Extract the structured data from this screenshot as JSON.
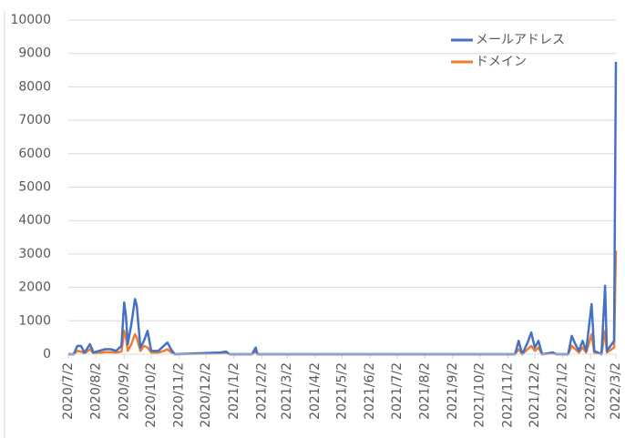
{
  "chart_data": {
    "type": "line",
    "x": [
      "2020/7/2",
      "2020/7/8",
      "2020/7/12",
      "2020/7/16",
      "2020/7/20",
      "2020/7/26",
      "2020/7/30",
      "2020/8/5",
      "2020/8/12",
      "2020/8/18",
      "2020/8/24",
      "2020/8/30",
      "2020/9/2",
      "2020/9/4",
      "2020/9/6",
      "2020/9/10",
      "2020/9/14",
      "2020/9/16",
      "2020/9/20",
      "2020/9/24",
      "2020/9/28",
      "2020/10/2",
      "2020/10/10",
      "2020/10/16",
      "2020/10/20",
      "2020/10/24",
      "2020/10/28",
      "2020/12/18",
      "2020/12/24",
      "2020/12/28",
      "2021/1/22",
      "2021/1/26",
      "2021/1/28",
      "2021/11/10",
      "2021/11/14",
      "2021/11/18",
      "2021/11/24",
      "2021/11/28",
      "2021/12/2",
      "2021/12/6",
      "2021/12/10",
      "2021/12/22",
      "2021/12/26",
      "2022/1/8",
      "2022/1/12",
      "2022/1/16",
      "2022/1/20",
      "2022/1/24",
      "2022/1/28",
      "2022/2/3",
      "2022/2/6",
      "2022/2/14",
      "2022/2/18",
      "2022/2/20",
      "2022/2/28",
      "2022/3/2"
    ],
    "series": [
      {
        "name": "メールアドレス",
        "color": "#4472c4",
        "values": [
          0,
          0,
          250,
          250,
          50,
          300,
          50,
          100,
          150,
          150,
          100,
          250,
          1550,
          1150,
          300,
          900,
          1650,
          1450,
          200,
          400,
          700,
          100,
          100,
          250,
          350,
          150,
          0,
          50,
          80,
          0,
          0,
          200,
          0,
          0,
          400,
          0,
          350,
          650,
          200,
          400,
          0,
          50,
          0,
          0,
          550,
          300,
          100,
          400,
          100,
          1500,
          100,
          0,
          2050,
          100,
          400,
          8750
        ]
      },
      {
        "name": "ドメイン",
        "color": "#ed7d31",
        "values": [
          0,
          0,
          100,
          80,
          20,
          150,
          20,
          40,
          60,
          60,
          50,
          80,
          700,
          500,
          100,
          300,
          600,
          500,
          100,
          250,
          200,
          50,
          50,
          100,
          150,
          60,
          0,
          20,
          30,
          0,
          0,
          80,
          0,
          0,
          150,
          0,
          150,
          250,
          100,
          200,
          0,
          20,
          0,
          0,
          250,
          150,
          50,
          200,
          50,
          600,
          50,
          0,
          700,
          50,
          200,
          3100
        ]
      }
    ],
    "xlim": [
      "2020/7/2",
      "2022/3/2"
    ],
    "xticks": [
      "2020/7/2",
      "2020/8/2",
      "2020/9/2",
      "2020/10/2",
      "2020/11/2",
      "2020/12/2",
      "2021/1/2",
      "2021/2/2",
      "2021/3/2",
      "2021/4/2",
      "2021/5/2",
      "2021/6/2",
      "2021/7/2",
      "2021/8/2",
      "2021/9/2",
      "2021/10/2",
      "2021/11/2",
      "2021/12/2",
      "2022/1/2",
      "2022/2/2",
      "2022/3/2"
    ],
    "ylim": [
      0,
      10000
    ],
    "yticks": [
      0,
      1000,
      2000,
      3000,
      4000,
      5000,
      6000,
      7000,
      8000,
      9000,
      10000
    ],
    "grid": true,
    "legend": "top-right"
  }
}
